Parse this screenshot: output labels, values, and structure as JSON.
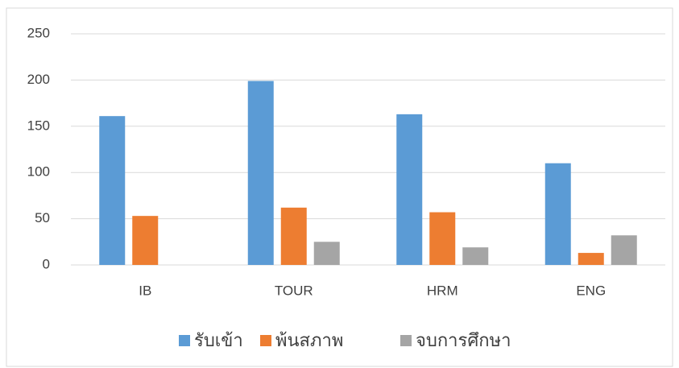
{
  "chart_data": {
    "type": "bar",
    "categories": [
      "IB",
      "TOUR",
      "HRM",
      "ENG"
    ],
    "series": [
      {
        "name": "รับเข้า",
        "color": "#5b9bd5",
        "values": [
          161,
          199,
          163,
          110
        ]
      },
      {
        "name": "พ้นสภาพ",
        "color": "#ed7d31",
        "values": [
          53,
          62,
          57,
          13
        ]
      },
      {
        "name": "จบการศึกษา",
        "color": "#a5a5a5",
        "values": [
          null,
          25,
          19,
          32
        ]
      }
    ],
    "ylim": [
      0,
      250
    ],
    "yticks": [
      0,
      50,
      100,
      150,
      200,
      250
    ],
    "grid": true,
    "legend": "bottom"
  }
}
